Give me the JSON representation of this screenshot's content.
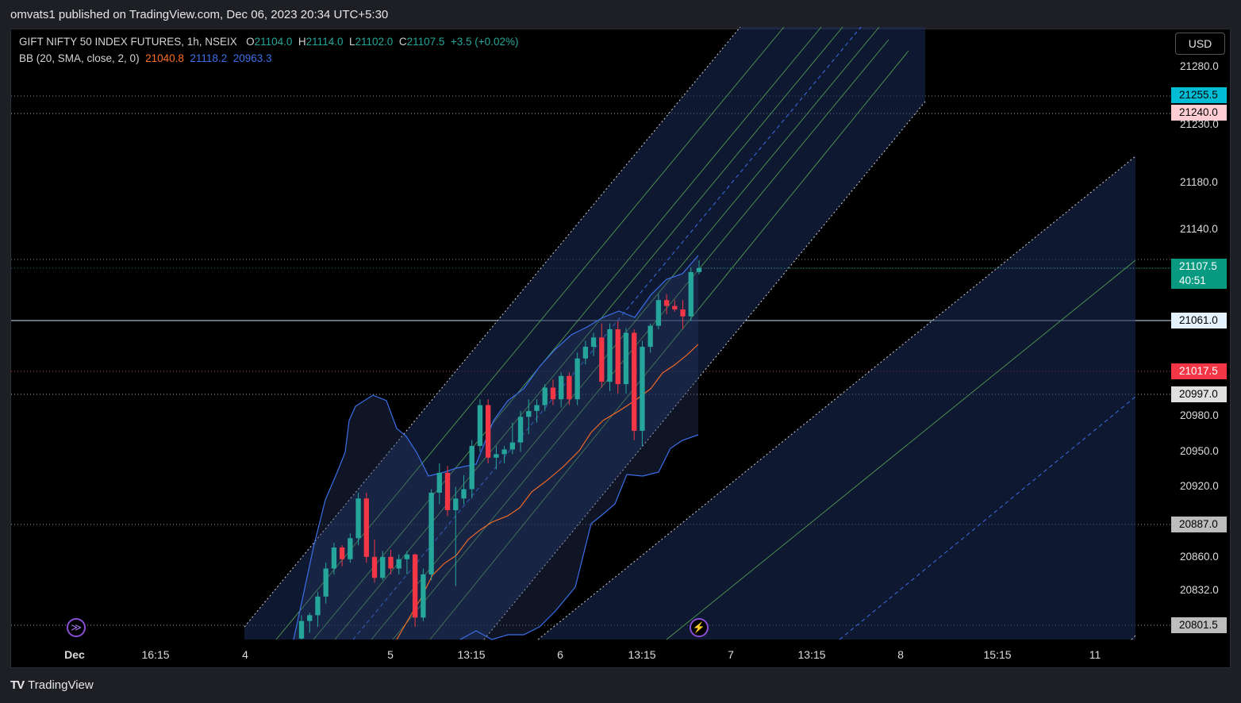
{
  "header": {
    "published_text": "omvats1 published on TradingView.com, Dec 06, 2023 20:34 UTC+5:30"
  },
  "legend": {
    "symbol": "GIFT NIFTY 50 INDEX FUTURES, 1h, NSEIX",
    "o_label": "O",
    "o": "21104.0",
    "h_label": "H",
    "h": "21114.0",
    "l_label": "L",
    "l": "21102.0",
    "c_label": "C",
    "c": "21107.5",
    "change": "+3.5 (+0.02%)",
    "bb_name": "BB (20, SMA, close, 2, 0)",
    "bb_mid": "21040.8",
    "bb_upper": "21118.2",
    "bb_lower": "20963.3"
  },
  "currency_button": "USD",
  "y_axis": {
    "ticks": [
      "21280.0",
      "21230.0",
      "21180.0",
      "21140.0",
      "20980.0",
      "20950.0",
      "20920.0",
      "20860.0",
      "20832.0"
    ],
    "labels": [
      {
        "value": "21255.5",
        "bg": "#00bcd4",
        "fg": "#000000"
      },
      {
        "value": "21240.0",
        "bg": "#ffcdd2",
        "fg": "#000000"
      },
      {
        "value": "21061.0",
        "bg": "#e3f2fd",
        "fg": "#000000"
      },
      {
        "value": "21017.5",
        "bg": "#f23645",
        "fg": "#ffffff"
      },
      {
        "value": "20997.0",
        "bg": "#e0e0e0",
        "fg": "#000000"
      },
      {
        "value": "20887.0",
        "bg": "#bdbdbd",
        "fg": "#000000"
      },
      {
        "value": "20801.5",
        "bg": "#bdbdbd",
        "fg": "#000000"
      }
    ],
    "price_label": {
      "value": "21107.5",
      "countdown": "40:51",
      "bg": "#089981"
    }
  },
  "x_axis": {
    "ticks": [
      "Dec",
      "16:15",
      "4",
      "5",
      "13:15",
      "6",
      "13:15",
      "7",
      "13:15",
      "8",
      "15:15",
      "11"
    ]
  },
  "branding": {
    "text": "TradingView",
    "logo": "TV"
  },
  "icons": {
    "replay": "replay-icon",
    "alert": "lightning-icon"
  },
  "colors": {
    "up": "#26a69a",
    "down": "#f23645",
    "channel": "#5c8a5c",
    "band": "#3b6fe8",
    "basis": "#ff6d24"
  },
  "chart_data": {
    "type": "candlestick",
    "interval": "1h",
    "y_range": [
      20780,
      21300
    ],
    "ohlc": [
      [
        20790,
        20810,
        20780,
        20805
      ],
      [
        20805,
        20812,
        20795,
        20810
      ],
      [
        20810,
        20830,
        20800,
        20826
      ],
      [
        20826,
        20855,
        20820,
        20850
      ],
      [
        20850,
        20872,
        20845,
        20868
      ],
      [
        20868,
        20870,
        20852,
        20858
      ],
      [
        20858,
        20880,
        20855,
        20876
      ],
      [
        20876,
        20915,
        20870,
        20910
      ],
      [
        20910,
        20915,
        20855,
        20860
      ],
      [
        20860,
        20875,
        20838,
        20842
      ],
      [
        20842,
        20865,
        20840,
        20860
      ],
      [
        20860,
        20866,
        20845,
        20850
      ],
      [
        20850,
        20862,
        20845,
        20858
      ],
      [
        20858,
        20865,
        20845,
        20862
      ],
      [
        20862,
        20863,
        20800,
        20808
      ],
      [
        20808,
        20850,
        20805,
        20845
      ],
      [
        20845,
        20918,
        20840,
        20915
      ],
      [
        20915,
        20940,
        20905,
        20932
      ],
      [
        20932,
        20938,
        20895,
        20900
      ],
      [
        20900,
        20920,
        20835,
        20910
      ],
      [
        20910,
        20930,
        20905,
        20918
      ],
      [
        20918,
        20960,
        20910,
        20955
      ],
      [
        20955,
        20995,
        20950,
        20990
      ],
      [
        20990,
        20995,
        20940,
        20945
      ],
      [
        20945,
        20955,
        20935,
        20948
      ],
      [
        20948,
        20955,
        20940,
        20952
      ],
      [
        20952,
        20975,
        20948,
        20958
      ],
      [
        20958,
        20985,
        20950,
        20980
      ],
      [
        20980,
        20995,
        20965,
        20985
      ],
      [
        20985,
        20995,
        20975,
        20990
      ],
      [
        20990,
        21008,
        20985,
        21005
      ],
      [
        21005,
        21012,
        20990,
        20995
      ],
      [
        20995,
        21018,
        20988,
        21015
      ],
      [
        21015,
        21018,
        20990,
        20995
      ],
      [
        20995,
        21035,
        20990,
        21030
      ],
      [
        21030,
        21045,
        21025,
        21040
      ],
      [
        21040,
        21052,
        21032,
        21048
      ],
      [
        21048,
        21060,
        21005,
        21010
      ],
      [
        21010,
        21060,
        21002,
        21055
      ],
      [
        21055,
        21062,
        21000,
        21008
      ],
      [
        21008,
        21056,
        21000,
        21052
      ],
      [
        21052,
        21055,
        20960,
        20968
      ],
      [
        20968,
        21045,
        20955,
        21040
      ],
      [
        21040,
        21060,
        21035,
        21058
      ],
      [
        21058,
        21085,
        21055,
        21080
      ],
      [
        21080,
        21085,
        21068,
        21075
      ],
      [
        21075,
        21080,
        21070,
        21072
      ],
      [
        21072,
        21080,
        21055,
        21066
      ],
      [
        21066,
        21108,
        21062,
        21104
      ],
      [
        21104,
        21114,
        21102,
        21107.5
      ]
    ]
  }
}
